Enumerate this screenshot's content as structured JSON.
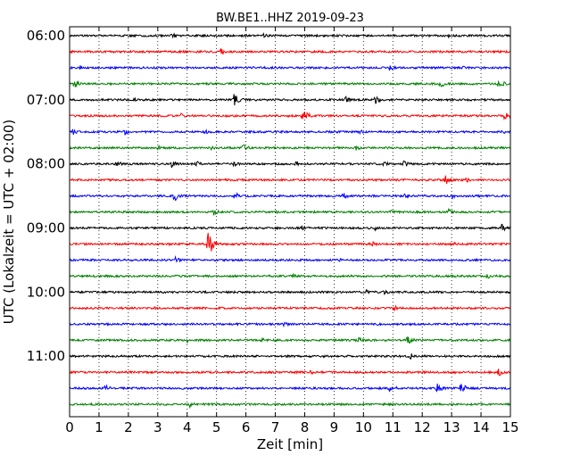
{
  "chart_data": {
    "type": "line",
    "title": "BW.BE1..HHZ 2019-09-23",
    "xlabel": "Zeit  [min]",
    "ylabel": "UTC (Lokalzeit = UTC + 02:00)",
    "xlim": [
      0,
      15
    ],
    "x_ticks": [
      "0",
      "1",
      "2",
      "3",
      "4",
      "5",
      "6",
      "7",
      "8",
      "9",
      "10",
      "11",
      "12",
      "13",
      "14",
      "15"
    ],
    "y_ticks": [
      {
        "label": "06:00",
        "trace": 0
      },
      {
        "label": "07:00",
        "trace": 4
      },
      {
        "label": "08:00",
        "trace": 8
      },
      {
        "label": "09:00",
        "trace": 12
      },
      {
        "label": "10:00",
        "trace": 16
      },
      {
        "label": "11:00",
        "trace": 20
      }
    ],
    "trace_interval_min": 15,
    "grid_x": true,
    "colors": [
      "#000000",
      "#ff0000",
      "#0000ff",
      "#008000"
    ],
    "traces": [
      {
        "start": "06:00",
        "color": "#000000",
        "events": [
          {
            "t": 3.45,
            "a": 4
          },
          {
            "t": 6.6,
            "a": 3
          },
          {
            "t": 12.9,
            "a": 3
          }
        ]
      },
      {
        "start": "06:15",
        "color": "#ff0000",
        "events": [
          {
            "t": 5.1,
            "a": 5
          },
          {
            "t": 8.9,
            "a": 2
          }
        ]
      },
      {
        "start": "06:30",
        "color": "#0000ff",
        "events": [
          {
            "t": 0.35,
            "a": 3
          },
          {
            "t": 10.9,
            "a": 4
          },
          {
            "t": 13.4,
            "a": 2
          }
        ]
      },
      {
        "start": "06:45",
        "color": "#008000",
        "events": [
          {
            "t": 0.15,
            "a": 5
          },
          {
            "t": 12.6,
            "a": 5
          },
          {
            "t": 14.6,
            "a": 6
          }
        ]
      },
      {
        "start": "07:00",
        "color": "#000000",
        "events": [
          {
            "t": 2.2,
            "a": 2
          },
          {
            "t": 5.6,
            "a": 8
          },
          {
            "t": 9.4,
            "a": 4
          },
          {
            "t": 10.4,
            "a": 5
          }
        ]
      },
      {
        "start": "07:15",
        "color": "#ff0000",
        "events": [
          {
            "t": 3.8,
            "a": 4
          },
          {
            "t": 7.9,
            "a": 10
          },
          {
            "t": 14.8,
            "a": 5
          }
        ]
      },
      {
        "start": "07:30",
        "color": "#0000ff",
        "events": [
          {
            "t": 0.1,
            "a": 4
          },
          {
            "t": 1.85,
            "a": 4
          },
          {
            "t": 4.6,
            "a": 3
          },
          {
            "t": 9.9,
            "a": 3
          },
          {
            "t": 14.7,
            "a": 3
          }
        ]
      },
      {
        "start": "07:45",
        "color": "#008000",
        "events": [
          {
            "t": 3.0,
            "a": 3
          },
          {
            "t": 4.8,
            "a": 3
          },
          {
            "t": 5.9,
            "a": 5
          },
          {
            "t": 9.7,
            "a": 4
          }
        ]
      },
      {
        "start": "08:00",
        "color": "#000000",
        "events": [
          {
            "t": 1.6,
            "a": 4
          },
          {
            "t": 3.45,
            "a": 6
          },
          {
            "t": 4.3,
            "a": 4
          },
          {
            "t": 5.6,
            "a": 4
          },
          {
            "t": 7.7,
            "a": 4
          },
          {
            "t": 10.7,
            "a": 4
          },
          {
            "t": 11.35,
            "a": 4
          }
        ]
      },
      {
        "start": "08:15",
        "color": "#ff0000",
        "events": [
          {
            "t": 12.8,
            "a": 6
          },
          {
            "t": 13.5,
            "a": 3
          }
        ]
      },
      {
        "start": "08:30",
        "color": "#0000ff",
        "events": [
          {
            "t": 3.55,
            "a": 7
          },
          {
            "t": 5.6,
            "a": 5
          },
          {
            "t": 9.3,
            "a": 4
          },
          {
            "t": 11.4,
            "a": 3
          },
          {
            "t": 13.0,
            "a": 3
          }
        ]
      },
      {
        "start": "08:45",
        "color": "#008000",
        "events": [
          {
            "t": 4.9,
            "a": 4
          },
          {
            "t": 7.0,
            "a": 3
          },
          {
            "t": 10.9,
            "a": 3
          },
          {
            "t": 12.9,
            "a": 4
          }
        ]
      },
      {
        "start": "09:00",
        "color": "#000000",
        "events": [
          {
            "t": 7.9,
            "a": 3
          },
          {
            "t": 10.4,
            "a": 3
          },
          {
            "t": 14.7,
            "a": 5
          }
        ]
      },
      {
        "start": "09:15",
        "color": "#ff0000",
        "events": [
          {
            "t": 4.7,
            "a": 16
          },
          {
            "t": 10.3,
            "a": 3
          },
          {
            "t": 13.0,
            "a": 3
          }
        ]
      },
      {
        "start": "09:30",
        "color": "#0000ff",
        "events": [
          {
            "t": 3.6,
            "a": 4
          },
          {
            "t": 9.2,
            "a": 2
          },
          {
            "t": 13.6,
            "a": 3
          }
        ]
      },
      {
        "start": "09:45",
        "color": "#008000",
        "events": [
          {
            "t": 7.6,
            "a": 3
          },
          {
            "t": 14.2,
            "a": 3
          }
        ]
      },
      {
        "start": "10:00",
        "color": "#000000",
        "events": [
          {
            "t": 10.1,
            "a": 3
          },
          {
            "t": 10.7,
            "a": 3
          }
        ]
      },
      {
        "start": "10:15",
        "color": "#ff0000",
        "events": [
          {
            "t": 2.9,
            "a": 2
          },
          {
            "t": 11.0,
            "a": 4
          }
        ]
      },
      {
        "start": "10:30",
        "color": "#0000ff",
        "events": [
          {
            "t": 7.3,
            "a": 3
          },
          {
            "t": 11.6,
            "a": 2
          }
        ]
      },
      {
        "start": "10:45",
        "color": "#008000",
        "events": [
          {
            "t": 4.0,
            "a": 3
          },
          {
            "t": 6.5,
            "a": 3
          },
          {
            "t": 9.8,
            "a": 4
          },
          {
            "t": 11.5,
            "a": 6
          }
        ]
      },
      {
        "start": "11:00",
        "color": "#000000",
        "events": [
          {
            "t": 10.7,
            "a": 2
          },
          {
            "t": 11.6,
            "a": 4
          }
        ]
      },
      {
        "start": "11:15",
        "color": "#ff0000",
        "events": [
          {
            "t": 8.2,
            "a": 3
          },
          {
            "t": 14.6,
            "a": 5
          }
        ]
      },
      {
        "start": "11:30",
        "color": "#0000ff",
        "events": [
          {
            "t": 1.2,
            "a": 5
          },
          {
            "t": 10.9,
            "a": 6
          },
          {
            "t": 12.5,
            "a": 6
          },
          {
            "t": 13.3,
            "a": 7
          }
        ]
      },
      {
        "start": "11:45",
        "color": "#008000",
        "events": [
          {
            "t": 4.1,
            "a": 4
          }
        ]
      }
    ]
  }
}
